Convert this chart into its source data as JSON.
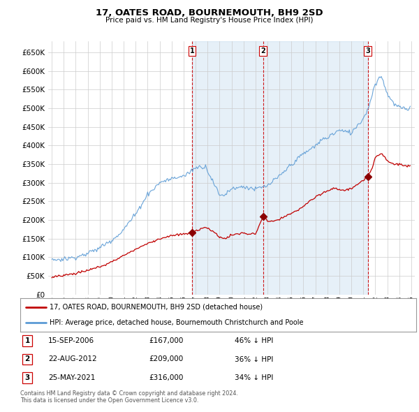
{
  "title": "17, OATES ROAD, BOURNEMOUTH, BH9 2SD",
  "subtitle": "Price paid vs. HM Land Registry's House Price Index (HPI)",
  "hpi_color": "#5b9bd5",
  "hpi_fill_color": "#daeaf7",
  "price_color": "#c00000",
  "marker_color": "#8b0000",
  "grid_color": "#cccccc",
  "background_color": "#ffffff",
  "plot_bg_color": "#ffffff",
  "ylim": [
    0,
    680000
  ],
  "xlim_left": 1994.7,
  "xlim_right": 2025.3,
  "transactions": [
    {
      "label": "1",
      "date": "15-SEP-2006",
      "price": 167000,
      "hpi_pct": "46% ↓ HPI",
      "x_year": 2006.71
    },
    {
      "label": "2",
      "date": "22-AUG-2012",
      "price": 209000,
      "hpi_pct": "36% ↓ HPI",
      "x_year": 2012.64
    },
    {
      "label": "3",
      "date": "25-MAY-2021",
      "price": 316000,
      "hpi_pct": "34% ↓ HPI",
      "x_year": 2021.38
    }
  ],
  "legend_entries": [
    "17, OATES ROAD, BOURNEMOUTH, BH9 2SD (detached house)",
    "HPI: Average price, detached house, Bournemouth Christchurch and Poole"
  ],
  "footnote1": "Contains HM Land Registry data © Crown copyright and database right 2024.",
  "footnote2": "This data is licensed under the Open Government Licence v3.0."
}
